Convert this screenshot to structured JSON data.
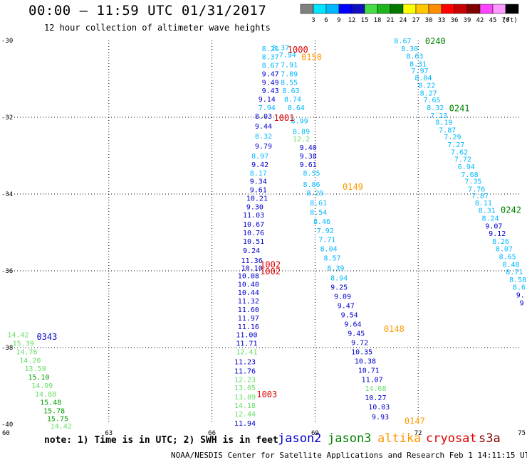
{
  "header": {
    "title": "00:00 – 11:59 UTC 01/31/2017",
    "subtitle": "12 hour collection of altimeter wave heights"
  },
  "colorbar": {
    "colors": [
      "#808080",
      "#00e5ff",
      "#00b8ff",
      "#0000ff",
      "#1010c0",
      "#44dd44",
      "#1eb41e",
      "#007800",
      "#ffff00",
      "#ffc800",
      "#ff8c00",
      "#ff0000",
      "#c80000",
      "#800000",
      "#ff44ff",
      "#ff99ff",
      "#000000"
    ],
    "labels": [
      "3",
      "6",
      "9",
      "12",
      "15",
      "18",
      "21",
      "24",
      "27",
      "30",
      "33",
      "36",
      "39",
      "42",
      "45",
      "70",
      "(ft)"
    ]
  },
  "footer": {
    "note": "note: 1) Time is in UTC; 2) SWH is in feet",
    "credit": "NOAA/NESDIS Center for Satellite Applications and Research   Feb  1 14:11:15 UTC 2017",
    "satellites": [
      {
        "name": "jason2",
        "color": "#0000cc"
      },
      {
        "name": "jason3",
        "color": "#008000"
      },
      {
        "name": "altika",
        "color": "#ff9900"
      },
      {
        "name": "cryosat",
        "color": "#dd0000"
      },
      {
        "name": "s3a",
        "color": "#880000"
      }
    ]
  },
  "chart_data": {
    "type": "scatter",
    "title": "00:00 – 11:59 UTC 01/31/2017",
    "subtitle": "12 hour collection of altimeter wave heights",
    "xlabel": "",
    "ylabel": "",
    "xlim": [
      60,
      75
    ],
    "ylim": [
      -40,
      -30
    ],
    "xticks": [
      60,
      63,
      66,
      69,
      72,
      75
    ],
    "yticks": [
      -30,
      -32,
      -34,
      -36,
      -38,
      -40
    ],
    "grid": true,
    "units": "ft",
    "colors": {
      "cyan": "#00b8ff",
      "blue": "#0000cc",
      "light_green": "#66dd66",
      "green": "#00a000"
    },
    "time_labels": [
      {
        "text": "0240",
        "x": 72.2,
        "y": -30.0,
        "color": "#008000"
      },
      {
        "text": "0241",
        "x": 72.9,
        "y": -31.75,
        "color": "#008000"
      },
      {
        "text": "0242",
        "x": 74.4,
        "y": -34.4,
        "color": "#008000"
      },
      {
        "text": "1000",
        "x": 68.2,
        "y": -30.22,
        "color": "#dd0000"
      },
      {
        "text": "0150",
        "x": 68.6,
        "y": -30.42,
        "color": "#ff9900"
      },
      {
        "text": "1001",
        "x": 67.8,
        "y": -32.0,
        "color": "#dd0000"
      },
      {
        "text": "0149",
        "x": 69.8,
        "y": -33.8,
        "color": "#ff9900"
      },
      {
        "text": "1002",
        "x": 67.4,
        "y": -35.82,
        "color": "#dd0000"
      },
      {
        "text": "1002",
        "x": 67.4,
        "y": -36.0,
        "color": "#dd0000"
      },
      {
        "text": "0148",
        "x": 71.0,
        "y": -37.5,
        "color": "#ff9900"
      },
      {
        "text": "0343",
        "x": 60.9,
        "y": -37.7,
        "color": "#0000cc"
      },
      {
        "text": "1003",
        "x": 67.3,
        "y": -39.2,
        "color": "#dd0000"
      },
      {
        "text": "0147",
        "x": 71.6,
        "y": -39.9,
        "color": "#ff9900"
      }
    ],
    "series": [
      {
        "points": [
          {
            "x": 67.45,
            "y": -30.2,
            "v": "8.21",
            "c": "cyan"
          },
          {
            "x": 67.75,
            "y": -30.18,
            "v": "8.37",
            "c": "cyan"
          },
          {
            "x": 67.45,
            "y": -30.42,
            "v": "8.37",
            "c": "cyan"
          },
          {
            "x": 67.95,
            "y": -30.36,
            "v": "7.94",
            "c": "cyan"
          },
          {
            "x": 67.45,
            "y": -30.64,
            "v": "8.67",
            "c": "cyan"
          },
          {
            "x": 68.0,
            "y": -30.62,
            "v": "7.91",
            "c": "cyan"
          },
          {
            "x": 67.45,
            "y": -30.86,
            "v": "9.47",
            "c": "blue"
          },
          {
            "x": 68.0,
            "y": -30.86,
            "v": "7.89",
            "c": "cyan"
          },
          {
            "x": 67.45,
            "y": -31.08,
            "v": "9.49",
            "c": "blue"
          },
          {
            "x": 68.0,
            "y": -31.08,
            "v": "8.55",
            "c": "cyan"
          },
          {
            "x": 67.45,
            "y": -31.3,
            "v": "9.43",
            "c": "blue"
          },
          {
            "x": 68.05,
            "y": -31.3,
            "v": "8.63",
            "c": "cyan"
          },
          {
            "x": 67.35,
            "y": -31.52,
            "v": "9.14",
            "c": "blue"
          },
          {
            "x": 68.1,
            "y": -31.52,
            "v": "8.74",
            "c": "cyan"
          },
          {
            "x": 67.35,
            "y": -31.74,
            "v": "7.94",
            "c": "cyan"
          },
          {
            "x": 68.2,
            "y": -31.74,
            "v": "8.64",
            "c": "cyan"
          },
          {
            "x": 67.25,
            "y": -31.96,
            "v": "8.03",
            "c": "blue"
          },
          {
            "x": 68.3,
            "y": -32.08,
            "v": "8.99",
            "c": "cyan"
          },
          {
            "x": 67.25,
            "y": -32.22,
            "v": "9.44",
            "c": "blue"
          },
          {
            "x": 68.35,
            "y": -32.36,
            "v": "8.89",
            "c": "cyan"
          },
          {
            "x": 67.25,
            "y": -32.48,
            "v": "8.32",
            "c": "cyan"
          },
          {
            "x": 68.35,
            "y": -32.56,
            "v": "12.2",
            "c": "light_green"
          },
          {
            "x": 67.25,
            "y": -32.74,
            "v": "9.79",
            "c": "blue"
          },
          {
            "x": 68.55,
            "y": -32.78,
            "v": "9.40",
            "c": "blue"
          },
          {
            "x": 67.15,
            "y": -33.0,
            "v": "8.97",
            "c": "cyan"
          },
          {
            "x": 68.55,
            "y": -33.0,
            "v": "9.38",
            "c": "blue"
          },
          {
            "x": 67.15,
            "y": -33.22,
            "v": "9.42",
            "c": "blue"
          },
          {
            "x": 68.55,
            "y": -33.22,
            "v": "9.61",
            "c": "blue"
          },
          {
            "x": 67.1,
            "y": -33.44,
            "v": "8.17",
            "c": "cyan"
          },
          {
            "x": 68.65,
            "y": -33.44,
            "v": "8.55",
            "c": "cyan"
          },
          {
            "x": 67.1,
            "y": -33.66,
            "v": "9.34",
            "c": "blue"
          },
          {
            "x": 68.65,
            "y": -33.74,
            "v": "8.86",
            "c": "cyan"
          },
          {
            "x": 67.1,
            "y": -33.88,
            "v": "9.61",
            "c": "blue"
          },
          {
            "x": 68.75,
            "y": -33.96,
            "v": "8.29",
            "c": "cyan"
          },
          {
            "x": 67.0,
            "y": -34.1,
            "v": "10.21",
            "c": "blue"
          },
          {
            "x": 68.85,
            "y": -34.22,
            "v": "8.61",
            "c": "cyan"
          },
          {
            "x": 67.0,
            "y": -34.32,
            "v": "9.30",
            "c": "blue"
          },
          {
            "x": 68.85,
            "y": -34.46,
            "v": "8.54",
            "c": "cyan"
          },
          {
            "x": 66.9,
            "y": -34.54,
            "v": "11.03",
            "c": "blue"
          },
          {
            "x": 68.95,
            "y": -34.7,
            "v": "8.46",
            "c": "cyan"
          },
          {
            "x": 66.9,
            "y": -34.78,
            "v": "10.67",
            "c": "blue"
          },
          {
            "x": 69.05,
            "y": -34.94,
            "v": "7.92",
            "c": "cyan"
          },
          {
            "x": 66.9,
            "y": -35.0,
            "v": "10.76",
            "c": "blue"
          },
          {
            "x": 69.1,
            "y": -35.18,
            "v": "7.71",
            "c": "cyan"
          },
          {
            "x": 66.9,
            "y": -35.22,
            "v": "10.51",
            "c": "blue"
          },
          {
            "x": 69.15,
            "y": -35.42,
            "v": "8.04",
            "c": "cyan"
          },
          {
            "x": 66.9,
            "y": -35.46,
            "v": "9.24",
            "c": "blue"
          },
          {
            "x": 69.25,
            "y": -35.66,
            "v": "8.57",
            "c": "cyan"
          },
          {
            "x": 66.85,
            "y": -35.72,
            "v": "11.36",
            "c": "blue"
          },
          {
            "x": 69.35,
            "y": -35.92,
            "v": "8.39",
            "c": "cyan"
          },
          {
            "x": 66.85,
            "y": -35.92,
            "v": "10.10",
            "c": "blue"
          },
          {
            "x": 69.45,
            "y": -36.18,
            "v": "8.94",
            "c": "cyan"
          },
          {
            "x": 66.75,
            "y": -36.12,
            "v": "10.08",
            "c": "blue"
          },
          {
            "x": 69.45,
            "y": -36.42,
            "v": "9.25",
            "c": "blue"
          },
          {
            "x": 66.75,
            "y": -36.34,
            "v": "10.40",
            "c": "blue"
          },
          {
            "x": 69.55,
            "y": -36.66,
            "v": "9.09",
            "c": "blue"
          },
          {
            "x": 66.75,
            "y": -36.56,
            "v": "10.44",
            "c": "blue"
          },
          {
            "x": 69.65,
            "y": -36.9,
            "v": "9.47",
            "c": "blue"
          },
          {
            "x": 66.75,
            "y": -36.78,
            "v": "11.32",
            "c": "blue"
          },
          {
            "x": 69.75,
            "y": -37.14,
            "v": "9.54",
            "c": "blue"
          },
          {
            "x": 66.75,
            "y": -37.0,
            "v": "11.60",
            "c": "blue"
          },
          {
            "x": 69.85,
            "y": -37.38,
            "v": "9.64",
            "c": "blue"
          },
          {
            "x": 66.75,
            "y": -37.22,
            "v": "11.97",
            "c": "blue"
          },
          {
            "x": 69.95,
            "y": -37.62,
            "v": "9.45",
            "c": "blue"
          },
          {
            "x": 66.75,
            "y": -37.44,
            "v": "11.16",
            "c": "blue"
          },
          {
            "x": 70.05,
            "y": -37.86,
            "v": "9.72",
            "c": "blue"
          },
          {
            "x": 66.7,
            "y": -37.66,
            "v": "11.00",
            "c": "blue"
          },
          {
            "x": 70.05,
            "y": -38.1,
            "v": "10.35",
            "c": "blue"
          },
          {
            "x": 66.7,
            "y": -37.88,
            "v": "11.71",
            "c": "blue"
          },
          {
            "x": 70.15,
            "y": -38.34,
            "v": "10.38",
            "c": "blue"
          },
          {
            "x": 66.7,
            "y": -38.1,
            "v": "12.41",
            "c": "light_green"
          },
          {
            "x": 70.25,
            "y": -38.58,
            "v": "10.71",
            "c": "blue"
          },
          {
            "x": 66.65,
            "y": -38.36,
            "v": "11.23",
            "c": "blue"
          },
          {
            "x": 70.35,
            "y": -38.82,
            "v": "11.07",
            "c": "blue"
          },
          {
            "x": 66.65,
            "y": -38.6,
            "v": "11.76",
            "c": "blue"
          },
          {
            "x": 70.45,
            "y": -39.06,
            "v": "14.68",
            "c": "light_green"
          },
          {
            "x": 66.65,
            "y": -38.82,
            "v": "12.23",
            "c": "light_green"
          },
          {
            "x": 70.45,
            "y": -39.3,
            "v": "10.27",
            "c": "blue"
          },
          {
            "x": 66.65,
            "y": -39.04,
            "v": "13.05",
            "c": "light_green"
          },
          {
            "x": 70.55,
            "y": -39.54,
            "v": "10.03",
            "c": "blue"
          },
          {
            "x": 66.65,
            "y": -39.28,
            "v": "13.89",
            "c": "light_green"
          },
          {
            "x": 70.65,
            "y": -39.8,
            "v": "9.93",
            "c": "blue"
          },
          {
            "x": 66.65,
            "y": -39.5,
            "v": "14.18",
            "c": "light_green"
          },
          {
            "x": 66.65,
            "y": -39.72,
            "v": "12.44",
            "c": "light_green"
          },
          {
            "x": 66.65,
            "y": -39.96,
            "v": "11.94",
            "c": "blue"
          }
        ]
      },
      {
        "points": [
          {
            "x": 71.3,
            "y": -30.0,
            "v": "8.67",
            "c": "cyan"
          },
          {
            "x": 71.5,
            "y": -30.2,
            "v": "8.30",
            "c": "cyan"
          },
          {
            "x": 71.65,
            "y": -30.4,
            "v": "8.63",
            "c": "cyan"
          },
          {
            "x": 71.75,
            "y": -30.6,
            "v": "8.31",
            "c": "cyan"
          },
          {
            "x": 71.8,
            "y": -30.78,
            "v": "7.97",
            "c": "cyan"
          },
          {
            "x": 71.9,
            "y": -30.96,
            "v": "8.04",
            "c": "cyan"
          },
          {
            "x": 72.0,
            "y": -31.16,
            "v": "8.22",
            "c": "cyan"
          },
          {
            "x": 72.05,
            "y": -31.36,
            "v": "8.27",
            "c": "cyan"
          },
          {
            "x": 72.15,
            "y": -31.54,
            "v": "7.65",
            "c": "cyan"
          },
          {
            "x": 72.25,
            "y": -31.74,
            "v": "8.32",
            "c": "cyan"
          },
          {
            "x": 72.35,
            "y": -31.94,
            "v": "7.13",
            "c": "cyan"
          },
          {
            "x": 72.5,
            "y": -32.12,
            "v": "8.19",
            "c": "cyan"
          },
          {
            "x": 72.6,
            "y": -32.32,
            "v": "7.87",
            "c": "cyan"
          },
          {
            "x": 72.75,
            "y": -32.5,
            "v": "7.29",
            "c": "cyan"
          },
          {
            "x": 72.85,
            "y": -32.7,
            "v": "7.27",
            "c": "cyan"
          },
          {
            "x": 72.95,
            "y": -32.9,
            "v": "7.62",
            "c": "cyan"
          },
          {
            "x": 73.05,
            "y": -33.08,
            "v": "7.72",
            "c": "cyan"
          },
          {
            "x": 73.15,
            "y": -33.28,
            "v": "6.94",
            "c": "cyan"
          },
          {
            "x": 73.25,
            "y": -33.48,
            "v": "7.68",
            "c": "cyan"
          },
          {
            "x": 73.35,
            "y": -33.66,
            "v": "7.35",
            "c": "cyan"
          },
          {
            "x": 73.45,
            "y": -33.86,
            "v": "7.76",
            "c": "cyan"
          },
          {
            "x": 73.55,
            "y": -34.04,
            "v": "7.87",
            "c": "cyan"
          },
          {
            "x": 73.65,
            "y": -34.22,
            "v": "8.11",
            "c": "cyan"
          },
          {
            "x": 73.75,
            "y": -34.42,
            "v": "8.31",
            "c": "cyan"
          },
          {
            "x": 73.85,
            "y": -34.62,
            "v": "8.24",
            "c": "cyan"
          },
          {
            "x": 73.95,
            "y": -34.82,
            "v": "9.07",
            "c": "blue"
          },
          {
            "x": 74.05,
            "y": -35.02,
            "v": "9.12",
            "c": "blue"
          },
          {
            "x": 74.15,
            "y": -35.22,
            "v": "8.26",
            "c": "cyan"
          },
          {
            "x": 74.25,
            "y": -35.42,
            "v": "8.07",
            "c": "cyan"
          },
          {
            "x": 74.35,
            "y": -35.62,
            "v": "8.65",
            "c": "cyan"
          },
          {
            "x": 74.45,
            "y": -35.82,
            "v": "8.48",
            "c": "cyan"
          },
          {
            "x": 74.55,
            "y": -36.02,
            "v": "8.71",
            "c": "cyan"
          },
          {
            "x": 74.65,
            "y": -36.22,
            "v": "8.58",
            "c": "cyan"
          },
          {
            "x": 74.75,
            "y": -36.42,
            "v": "8.6",
            "c": "cyan"
          },
          {
            "x": 74.85,
            "y": -36.62,
            "v": "9.",
            "c": "blue"
          },
          {
            "x": 74.95,
            "y": -36.82,
            "v": "9",
            "c": "blue"
          }
        ]
      },
      {
        "points": [
          {
            "x": 60.05,
            "y": -37.66,
            "v": "14.42",
            "c": "light_green"
          },
          {
            "x": 60.2,
            "y": -37.88,
            "v": "15.39",
            "c": "light_green"
          },
          {
            "x": 60.3,
            "y": -38.1,
            "v": "14.76",
            "c": "light_green"
          },
          {
            "x": 60.4,
            "y": -38.32,
            "v": "14.20",
            "c": "light_green"
          },
          {
            "x": 60.55,
            "y": -38.54,
            "v": "13.59",
            "c": "light_green"
          },
          {
            "x": 60.65,
            "y": -38.76,
            "v": "15.10",
            "c": "green"
          },
          {
            "x": 60.75,
            "y": -38.98,
            "v": "14.99",
            "c": "light_green"
          },
          {
            "x": 60.85,
            "y": -39.2,
            "v": "14.88",
            "c": "light_green"
          },
          {
            "x": 61.0,
            "y": -39.42,
            "v": "15.48",
            "c": "green"
          },
          {
            "x": 61.1,
            "y": -39.64,
            "v": "15.78",
            "c": "green"
          },
          {
            "x": 61.2,
            "y": -39.84,
            "v": "15.75",
            "c": "green"
          },
          {
            "x": 61.3,
            "y": -40.04,
            "v": "14.42",
            "c": "light_green"
          }
        ]
      }
    ]
  }
}
